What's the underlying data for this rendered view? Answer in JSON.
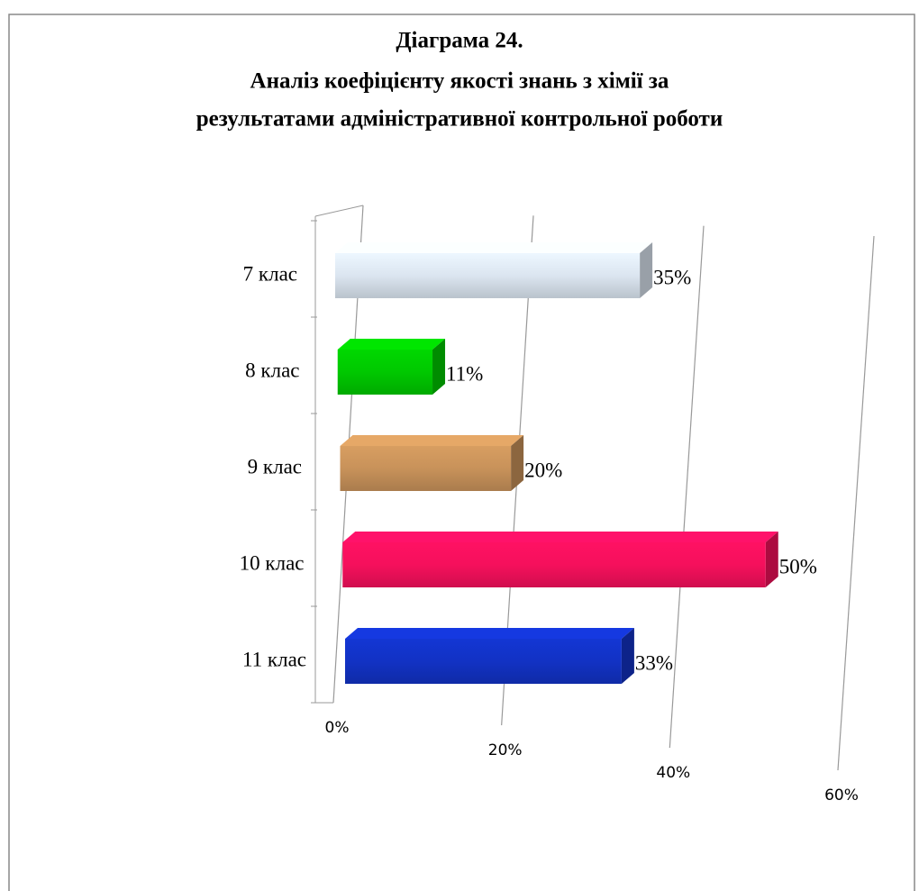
{
  "chart_data": {
    "type": "bar3d",
    "title": [
      "Діаграма 24.",
      "Аналіз коефіцієнту якості знань  з хімії за",
      "результатами адміністративної контрольної роботи"
    ],
    "categories": [
      "7 клас",
      "8 клас",
      "9 клас",
      "10 клас",
      "11 клас"
    ],
    "values": [
      35,
      11,
      20,
      50,
      33
    ],
    "value_labels": [
      "35%",
      "11%",
      "20%",
      "50%",
      "33%"
    ],
    "colors": [
      "#dbe5f0",
      "#00c800",
      "#c8925a",
      "#f5105c",
      "#1232c4"
    ],
    "xlim": [
      0,
      60
    ],
    "xticks": [
      {
        "value": 0,
        "label": "0%"
      },
      {
        "value": 20,
        "label": "20%"
      },
      {
        "value": 40,
        "label": "40%"
      },
      {
        "value": 60,
        "label": "60%"
      }
    ],
    "grid": true
  }
}
